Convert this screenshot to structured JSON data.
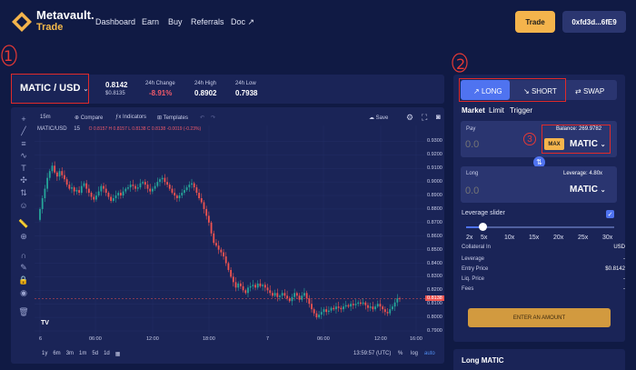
{
  "header": {
    "brand": "Metavault.",
    "brand_sub": "Trade",
    "nav": [
      "Dashboard",
      "Earn",
      "Buy",
      "Referrals",
      "Doc ↗"
    ],
    "trade_button": "Trade",
    "wallet": "0xfd3d...6fE9"
  },
  "annotations": {
    "one": "1",
    "two": "2",
    "three": "3"
  },
  "pair": {
    "name": "MATIC / USD",
    "price": "0.8142",
    "price_sub": "$0.8135",
    "change_label": "24h Change",
    "change_value": "-8.91%",
    "high_label": "24h High",
    "high_value": "0.8902",
    "low_label": "24h Low",
    "low_value": "0.7938"
  },
  "chart_toolbar": {
    "interval": "15m",
    "compare": "Compare",
    "indicators": "Indicators",
    "templates": "Templates",
    "save": "Save"
  },
  "chart_legend": {
    "symbol": "MATIC/USD",
    "interval": "15",
    "ohlc": "O 0.8157  H 0.8157  L 0.8138  C 0.8138  -0.0019 (-0.23%)"
  },
  "chart_footer": {
    "ranges": [
      "1y",
      "6m",
      "3m",
      "1m",
      "5d",
      "1d"
    ],
    "time": "13:59:57 (UTC)",
    "pct": "%",
    "log": "log",
    "auto": "auto"
  },
  "chart_data": {
    "type": "candlestick",
    "symbol": "MATIC/USD",
    "interval": "15m",
    "y_ticks": [
      "0.9300",
      "0.9200",
      "0.9100",
      "0.9000",
      "0.8900",
      "0.8800",
      "0.8700",
      "0.8600",
      "0.8500",
      "0.8400",
      "0.8300",
      "0.8200",
      "0.8100",
      "0.8000",
      "0.7900"
    ],
    "x_ticks": [
      "6",
      "06:00",
      "12:00",
      "18:00",
      "7",
      "06:00",
      "12:00",
      "16:00"
    ],
    "ylim": [
      0.79,
      0.935
    ],
    "last_price_label": "0.8138",
    "close": [
      0.88,
      0.888,
      0.895,
      0.903,
      0.908,
      0.912,
      0.907,
      0.904,
      0.908,
      0.905,
      0.902,
      0.898,
      0.895,
      0.896,
      0.893,
      0.894,
      0.892,
      0.897,
      0.899,
      0.895,
      0.892,
      0.889,
      0.887,
      0.89,
      0.893,
      0.897,
      0.895,
      0.892,
      0.889,
      0.886,
      0.888,
      0.89,
      0.892,
      0.89,
      0.893,
      0.895,
      0.896,
      0.898,
      0.897,
      0.895,
      0.896,
      0.899,
      0.9,
      0.898,
      0.895,
      0.893,
      0.895,
      0.897,
      0.9,
      0.902,
      0.903,
      0.9,
      0.898,
      0.895,
      0.892,
      0.89,
      0.888,
      0.89,
      0.892,
      0.894,
      0.896,
      0.898,
      0.899,
      0.896,
      0.892,
      0.888,
      0.885,
      0.88,
      0.875,
      0.87,
      0.862,
      0.855,
      0.853,
      0.85,
      0.848,
      0.845,
      0.84,
      0.835,
      0.83,
      0.826,
      0.822,
      0.825,
      0.823,
      0.82,
      0.818,
      0.822,
      0.823,
      0.824,
      0.822,
      0.825,
      0.823,
      0.824,
      0.822,
      0.82,
      0.818,
      0.816,
      0.818,
      0.815,
      0.816,
      0.818,
      0.816,
      0.814,
      0.812,
      0.815,
      0.818,
      0.816,
      0.813,
      0.816,
      0.818,
      0.814,
      0.81,
      0.806,
      0.803,
      0.8,
      0.802,
      0.804,
      0.806,
      0.804,
      0.805,
      0.807,
      0.806,
      0.808,
      0.807,
      0.806,
      0.808,
      0.809,
      0.808,
      0.81,
      0.809,
      0.81,
      0.811,
      0.81,
      0.811,
      0.809,
      0.807,
      0.808,
      0.806,
      0.808,
      0.81,
      0.808,
      0.806,
      0.804,
      0.803,
      0.806,
      0.808,
      0.811,
      0.814,
      0.8138
    ]
  },
  "order_panel": {
    "tab_long": "LONG",
    "tab_short": "SHORT",
    "tab_swap": "SWAP",
    "order_types": [
      "Market",
      "Limit",
      "Trigger"
    ],
    "pay_label": "Pay",
    "balance": "Balance: 269.9782",
    "pay_value": "0.0",
    "max": "MAX",
    "pay_token": "MATIC",
    "long_label": "Long",
    "leverage_label": "Leverage: 4.80x",
    "long_value": "0.0",
    "long_token": "MATIC",
    "leverage_slider_label": "Leverage slider",
    "leverage_value": 4.8,
    "slider_marks": [
      "2x",
      "5x",
      "10x",
      "15x",
      "20x",
      "25x",
      "30x"
    ],
    "rows": [
      {
        "label": "Collateral In",
        "value": "USD"
      },
      {
        "label": "Leverage",
        "value": "-"
      },
      {
        "label": "Entry Price",
        "value": "$0.8142"
      },
      {
        "label": "Liq. Price",
        "value": "-"
      },
      {
        "label": "Fees",
        "value": "-"
      }
    ],
    "enter_button": "ENTER AN AMOUNT"
  },
  "long_panel": {
    "title": "Long MATIC"
  }
}
